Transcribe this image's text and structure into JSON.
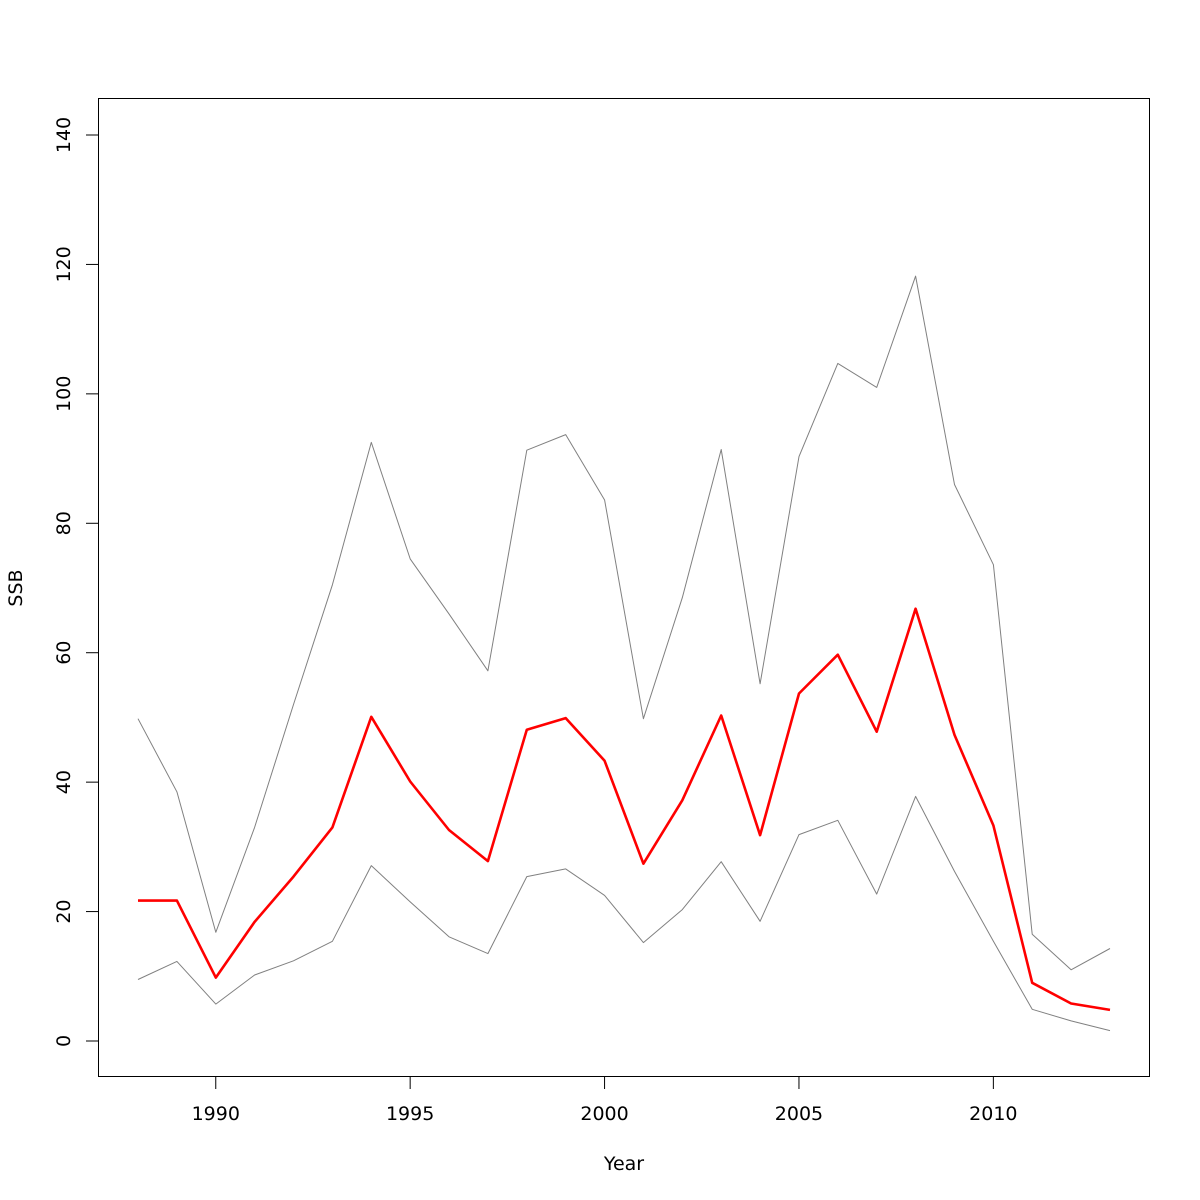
{
  "chart_data": {
    "type": "line",
    "title": "",
    "xlabel": "Year",
    "ylabel": "SSB",
    "xlim": [
      1988,
      2013
    ],
    "ylim": [
      0,
      140
    ],
    "x_ticks": [
      1990,
      1995,
      2000,
      2005,
      2010
    ],
    "y_ticks": [
      0,
      20,
      40,
      60,
      80,
      100,
      120,
      140
    ],
    "grid": false,
    "legend": "none",
    "x": [
      1988,
      1989,
      1990,
      1991,
      1992,
      1993,
      1994,
      1995,
      1996,
      1997,
      1998,
      1999,
      2000,
      2001,
      2002,
      2003,
      2004,
      2005,
      2006,
      2007,
      2008,
      2009,
      2010,
      2011,
      2012,
      2013
    ],
    "series": [
      {
        "role": "upper",
        "color": "#808080",
        "values": [
          49.8,
          38.5,
          16.8,
          33.0,
          52.0,
          70.5,
          92.5,
          74.5,
          66.0,
          57.2,
          91.3,
          93.7,
          83.6,
          49.8,
          68.5,
          91.4,
          55.2,
          90.3,
          104.7,
          101.0,
          118.2,
          86.0,
          73.6,
          16.5,
          11.0,
          14.3
        ]
      },
      {
        "role": "estimate",
        "color": "#ff0000",
        "values": [
          21.7,
          21.7,
          9.8,
          18.4,
          25.4,
          33.0,
          50.1,
          40.1,
          32.6,
          27.8,
          48.1,
          49.9,
          43.3,
          27.4,
          37.2,
          50.3,
          31.8,
          53.7,
          59.7,
          47.8,
          66.8,
          47.3,
          33.3,
          9.0,
          5.8,
          4.8
        ]
      },
      {
        "role": "lower",
        "color": "#808080",
        "values": [
          9.5,
          12.3,
          5.7,
          10.2,
          12.4,
          15.4,
          27.1,
          21.5,
          16.1,
          13.5,
          25.4,
          26.6,
          22.5,
          15.2,
          20.3,
          27.7,
          18.5,
          31.9,
          34.1,
          22.7,
          37.8,
          26.2,
          15.4,
          4.9,
          3.1,
          1.6
        ]
      }
    ]
  }
}
